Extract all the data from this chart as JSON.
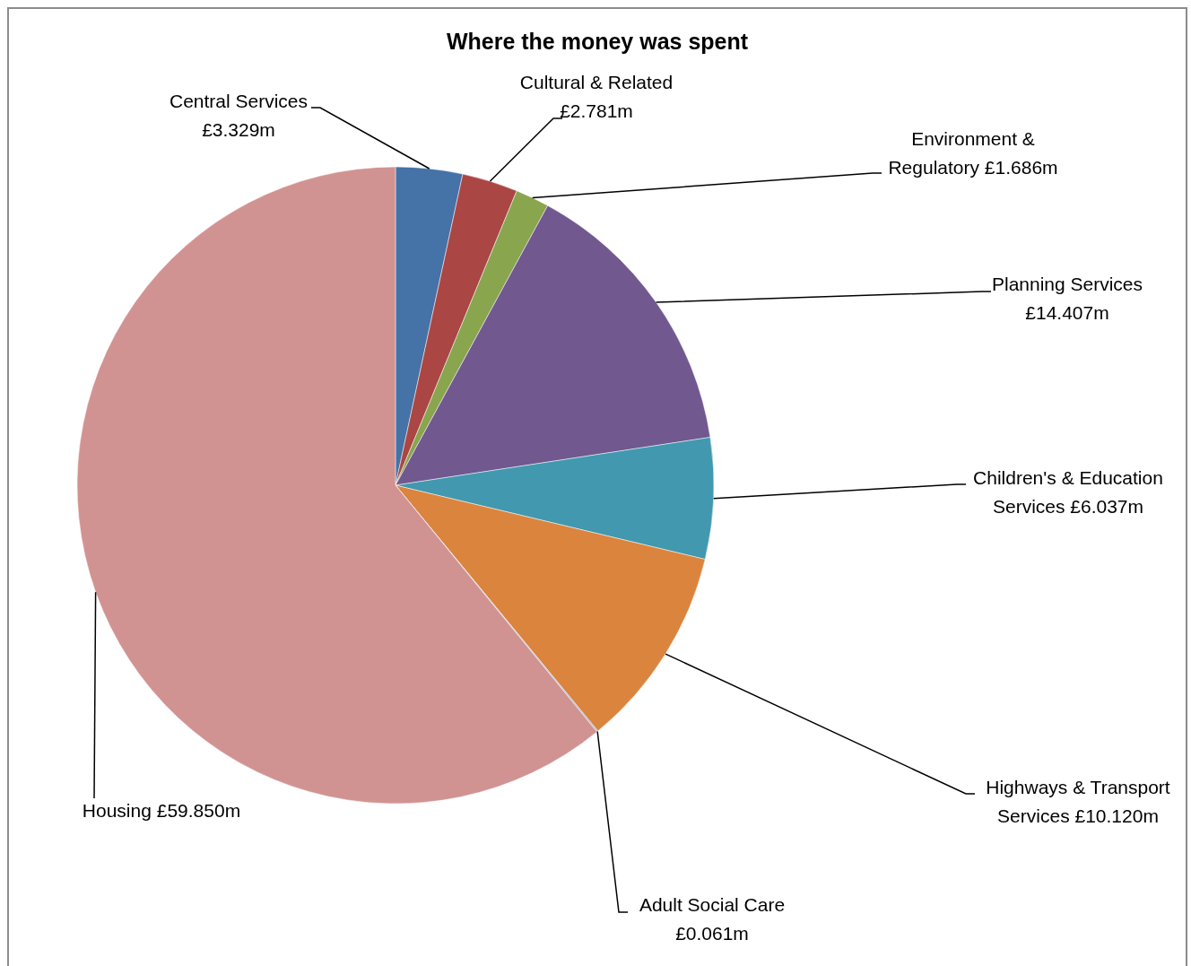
{
  "chart_data": {
    "type": "pie",
    "title": "Where the money was spent",
    "categories": [
      "Central Services",
      "Cultural & Related",
      "Environment & Regulatory",
      "Planning Services",
      "Children's & Education Services",
      "Highways & Transport Services",
      "Adult Social Care",
      "Housing"
    ],
    "values": [
      3.329,
      2.781,
      1.686,
      14.407,
      6.037,
      10.12,
      0.061,
      59.85
    ],
    "value_labels": [
      "£3.329m",
      "£2.781m",
      "£1.686m",
      "£14.407m",
      "£6.037m",
      "£10.120m",
      "£0.061m",
      "£59.850m"
    ],
    "colors": [
      "#4572a7",
      "#aa4643",
      "#89a54e",
      "#71588f",
      "#4198af",
      "#db843d",
      "#93a9cf",
      "#d19392"
    ]
  }
}
